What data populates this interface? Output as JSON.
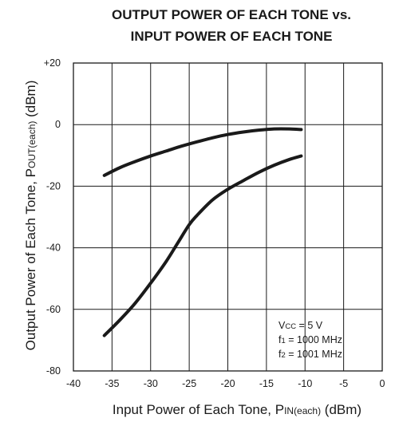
{
  "chart_data": {
    "type": "line",
    "title_line1": "OUTPUT POWER OF EACH TONE vs.",
    "title_line2": "INPUT POWER OF EACH TONE",
    "xlabel": {
      "main": "Input Power of Each Tone, P",
      "sub": "IN(each)",
      "unit": " (dBm)"
    },
    "ylabel": {
      "main": "Output Power of Each Tone, P",
      "sub": "OUT(each)",
      "unit": " (dBm)"
    },
    "xlim": [
      -40,
      0
    ],
    "ylim": [
      -80,
      20
    ],
    "x_ticks": [
      -40,
      -35,
      -30,
      -25,
      -20,
      -15,
      -10,
      -5,
      0
    ],
    "x_tick_labels": [
      "-40",
      "-35",
      "-30",
      "-25",
      "-20",
      "-15",
      "-10",
      "-5",
      "0"
    ],
    "y_ticks": [
      20,
      0,
      -20,
      -40,
      -60,
      -80
    ],
    "y_tick_labels": [
      "+20",
      "0",
      "-20",
      "-40",
      "-60",
      "-80"
    ],
    "grid": true,
    "series": [
      {
        "x": [
          -36,
          -34,
          -32,
          -30,
          -28,
          -26,
          -24,
          -22,
          -20,
          -18,
          -16,
          -14,
          -12,
          -10.5
        ],
        "y": [
          -16.5,
          -14.0,
          -12.0,
          -10.2,
          -8.6,
          -7.0,
          -5.6,
          -4.3,
          -3.2,
          -2.4,
          -1.8,
          -1.4,
          -1.4,
          -1.6
        ]
      },
      {
        "x": [
          -36,
          -34,
          -32,
          -30,
          -28,
          -26.5,
          -25,
          -24,
          -22,
          -20,
          -18,
          -16,
          -14,
          -12,
          -10.5
        ],
        "y": [
          -68.5,
          -63.5,
          -58.0,
          -51.5,
          -44.5,
          -38.5,
          -32.5,
          -29.5,
          -24.5,
          -21.0,
          -18.2,
          -15.5,
          -13.2,
          -11.3,
          -10.2
        ]
      }
    ],
    "annotations": {
      "line1": {
        "pre": "V",
        "sub": "CC",
        "post": " = 5 V"
      },
      "line2": {
        "pre": "f",
        "sub": "1",
        "post": " = 1000 MHz"
      },
      "line3": {
        "pre": "f",
        "sub": "2",
        "post": " = 1001 MHz"
      }
    }
  }
}
